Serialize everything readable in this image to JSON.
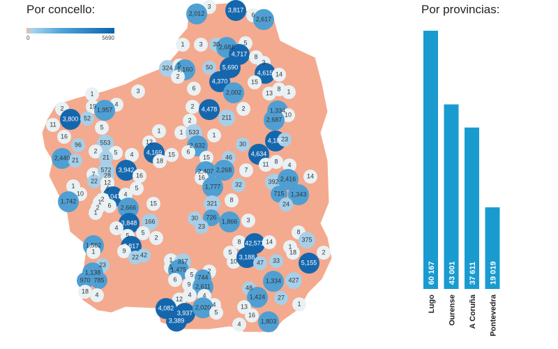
{
  "chart_data": [
    {
      "type": "heatmap",
      "title": "Por concello:",
      "legend": {
        "min_label": "0",
        "max_label": "5690",
        "colors": [
          "#f3b7a2",
          "#a9d3ee",
          "#0b63ad"
        ]
      },
      "labels": [
        "3",
        "2,012",
        "3,817",
        "6",
        "2,617",
        "1",
        "3",
        "30",
        "2,681",
        "5",
        "4,717",
        "8",
        "3",
        "324",
        "5",
        "1,160",
        "50",
        "5,690",
        "4,615",
        "14",
        "2",
        "4,370",
        "15",
        "6",
        "3",
        "1",
        "2,002",
        "13",
        "8",
        "1",
        "19",
        "4",
        "1,957",
        "2",
        "3,800",
        "52",
        "11",
        "2",
        "4,478",
        "2",
        "1,334",
        "10",
        "211",
        "2",
        "2,687",
        "5",
        "16",
        "1",
        "1",
        "533",
        "1",
        "30",
        "4,180",
        "23",
        "96",
        "553",
        "12",
        "4,169",
        "2,632",
        "15",
        "6",
        "2",
        "5",
        "4",
        "2,440",
        "21",
        "21",
        "4,634",
        "15",
        "46",
        "11",
        "8",
        "4",
        "18",
        "7",
        "572",
        "3,942",
        "16",
        "22",
        "28",
        "12",
        "2,407",
        "2,268",
        "7",
        "16",
        "392",
        "2,416",
        "14",
        "1,777",
        "32",
        "1",
        "4",
        "5",
        "10",
        "3,047",
        "4",
        "2",
        "1,742",
        "6",
        "1",
        "715",
        "1,343",
        "24",
        "321",
        "8",
        "2",
        "1",
        "2,666",
        "15",
        "3,848",
        "166",
        "4",
        "30",
        "726",
        "1,866",
        "3",
        "23",
        "5",
        "5",
        "2",
        "8",
        "375",
        "8",
        "42,571",
        "14",
        "1,562",
        "1",
        "3,817",
        "9",
        "2",
        "1",
        "5",
        "18",
        "22",
        "42",
        "10",
        "3,188",
        "47",
        "33",
        "5,155",
        "1",
        "317",
        "1",
        "1,475",
        "2",
        "23",
        "1,138",
        "970",
        "785",
        "6",
        "5",
        "744",
        "9",
        "2,611",
        "1,334",
        "427",
        "48",
        "18",
        "4",
        "12",
        "4",
        "4",
        "1,424",
        "27",
        "4",
        "13",
        "1",
        "4,082",
        "3,937",
        "2,020",
        "5",
        "16",
        "3,389",
        "1,803",
        "4"
      ]
    },
    {
      "type": "bar",
      "title": "Por provincias:",
      "categories": [
        "Lugo",
        "Ourense",
        "A Coruña",
        "Pontevedra"
      ],
      "values": [
        60167,
        43001,
        37611,
        19019
      ],
      "value_labels": [
        "60 167",
        "43 001",
        "37 611",
        "19 019"
      ],
      "color": "#1a9bd0",
      "ylim": [
        0,
        60167
      ]
    }
  ]
}
